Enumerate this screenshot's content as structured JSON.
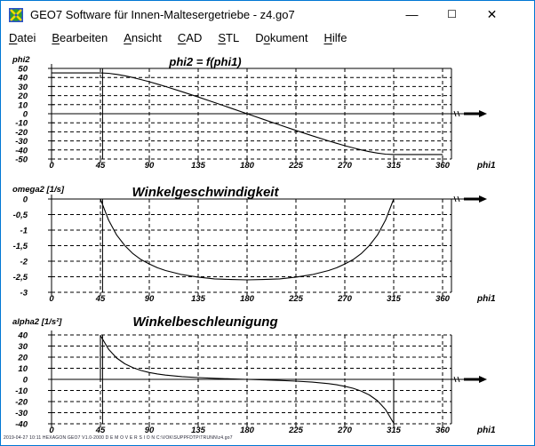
{
  "window": {
    "title": "GEO7  Software für Innen-Maltesergetriebe  -  z4.go7",
    "controls": {
      "minimize": "—",
      "maximize": "☐",
      "close": "✕"
    },
    "border_color": "#0077d4"
  },
  "menu": {
    "items": [
      {
        "label": "Datei",
        "accel_index": 0
      },
      {
        "label": "Bearbeiten",
        "accel_index": 0
      },
      {
        "label": "Ansicht",
        "accel_index": 0
      },
      {
        "label": "CAD",
        "accel_index": 0
      },
      {
        "label": "STL",
        "accel_index": 0
      },
      {
        "label": "Dokument",
        "accel_index": 1
      },
      {
        "label": "Hilfe",
        "accel_index": 0
      }
    ]
  },
  "footer": {
    "text": "2019-04-27 10:11  HEXAGON GEO7 V1.0-2000  D E M O V E R S I O N  C:\\VOK\\SUPPFDTP\\TRUNN\\z4.go7"
  },
  "chart_data": [
    {
      "type": "line",
      "title": "phi2 = f(phi1)",
      "ylabel": "phi2",
      "xlabel": "phi1",
      "xlim": [
        0,
        368
      ],
      "ylim": [
        -50,
        50
      ],
      "grid": "dashed",
      "legend": "none",
      "marker_x": 47,
      "xticks": [
        0,
        45,
        90,
        135,
        180,
        225,
        270,
        315,
        360
      ],
      "xtick_labels": [
        "0",
        "45",
        "90",
        "135",
        "180",
        "225",
        "270",
        "315",
        "360"
      ],
      "yticks": [
        50,
        40,
        30,
        20,
        10,
        0,
        -10,
        -20,
        -30,
        -40,
        -50
      ],
      "ytick_labels": [
        "50",
        "40",
        "30",
        "20",
        "10",
        "0",
        "-10",
        "-20",
        "-30",
        "-40",
        "-50"
      ],
      "series": [
        {
          "name": "phi2",
          "x": [
            0,
            45,
            52.5,
            60,
            67.5,
            75,
            82.5,
            90,
            97.5,
            105,
            120,
            135,
            150,
            165,
            180,
            195,
            210,
            225,
            240,
            255,
            262.5,
            270,
            277.5,
            285,
            292.5,
            300,
            307.5,
            315,
            360
          ],
          "y": [
            45,
            45,
            44.57,
            43.45,
            41.85,
            39.89,
            37.67,
            35.26,
            32.69,
            30,
            24.34,
            18.43,
            12.37,
            6.21,
            0,
            -6.21,
            -12.37,
            -18.43,
            -24.34,
            -30,
            -32.69,
            -35.26,
            -37.67,
            -39.89,
            -41.85,
            -43.45,
            -44.57,
            -45,
            -45
          ]
        }
      ]
    },
    {
      "type": "line",
      "title": "Winkelgeschwindigkeit",
      "ylabel": "omega2 [1/s]",
      "xlabel": "phi1",
      "xlim": [
        0,
        368
      ],
      "ylim": [
        -3,
        0
      ],
      "grid": "dashed",
      "legend": "none",
      "marker_x": 47,
      "xticks": [
        0,
        45,
        90,
        135,
        180,
        225,
        270,
        315,
        360
      ],
      "xtick_labels": [
        "0",
        "45",
        "90",
        "135",
        "180",
        "225",
        "270",
        "315",
        "360"
      ],
      "yticks": [
        0,
        -0.5,
        -1,
        -1.5,
        -2,
        -2.5,
        -3
      ],
      "ytick_labels": [
        "0",
        "-0,5",
        "-1",
        "-1,5",
        "-2",
        "-2,5",
        "-3"
      ],
      "series": [
        {
          "name": "omega2",
          "x": [
            0,
            45,
            52.5,
            60,
            67.5,
            75,
            82.5,
            90,
            97.5,
            105,
            120,
            135,
            150,
            165,
            180,
            195,
            210,
            225,
            240,
            255,
            262.5,
            270,
            277.5,
            285,
            292.5,
            300,
            307.5,
            315,
            360
          ],
          "y": [
            0,
            0,
            -0.68,
            -1.16,
            -1.5,
            -1.76,
            -1.95,
            -2.09,
            -2.21,
            -2.3,
            -2.43,
            -2.51,
            -2.57,
            -2.59,
            -2.6,
            -2.59,
            -2.57,
            -2.51,
            -2.43,
            -2.3,
            -2.21,
            -2.09,
            -1.95,
            -1.76,
            -1.5,
            -1.16,
            -0.68,
            0,
            0
          ]
        }
      ]
    },
    {
      "type": "line",
      "title": "Winkelbeschleunigung",
      "ylabel": "alpha2 [1/s²]",
      "xlabel": "phi1",
      "xlim": [
        0,
        368
      ],
      "ylim": [
        -40,
        40
      ],
      "grid": "dashed",
      "legend": "none",
      "marker_x": 47,
      "xticks": [
        0,
        45,
        90,
        135,
        180,
        225,
        270,
        315,
        360
      ],
      "xtick_labels": [
        "0",
        "45",
        "90",
        "135",
        "180",
        "225",
        "270",
        "315",
        "360"
      ],
      "yticks": [
        40,
        30,
        20,
        10,
        0,
        -10,
        -20,
        -30,
        -40
      ],
      "ytick_labels": [
        "40",
        "30",
        "20",
        "10",
        "0",
        "-10",
        "-20",
        "-30",
        "-40"
      ],
      "series": [
        {
          "name": "alpha2",
          "x": [
            0,
            45,
            45,
            52.5,
            60,
            67.5,
            75,
            82.5,
            90,
            97.5,
            105,
            120,
            135,
            150,
            165,
            180,
            195,
            210,
            225,
            240,
            255,
            262.5,
            270,
            277.5,
            285,
            292.5,
            300,
            307.5,
            315,
            315,
            360
          ],
          "y": [
            0,
            0,
            39.48,
            27.11,
            19.23,
            14.03,
            10.49,
            8,
            6.2,
            4.88,
            3.87,
            2.48,
            1.58,
            0.94,
            0.44,
            0,
            -0.44,
            -0.94,
            -1.58,
            -2.48,
            -3.87,
            -4.88,
            -6.2,
            -8,
            -10.49,
            -14.03,
            -19.23,
            -27.11,
            -39.48,
            0,
            0
          ]
        }
      ]
    }
  ]
}
